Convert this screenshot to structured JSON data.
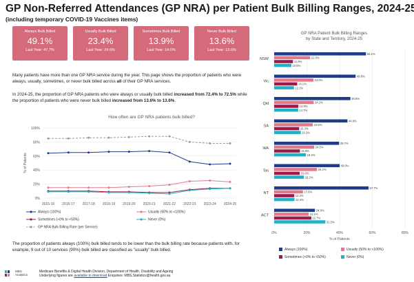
{
  "header": {
    "title": "GP Non-Referred Attendances (GP NRA) per Patient Bulk Billing Ranges, 2024-25",
    "subtitle": "(including temporary COVID-19 Vaccines items)"
  },
  "kpis": [
    {
      "label": "Always Bulk Billed",
      "value": "49.1%",
      "last_year": "Last Year: 47.7%"
    },
    {
      "label": "Usually Bulk Billed",
      "value": "23.4%",
      "last_year": "Last Year: 24.6%"
    },
    {
      "label": "Sometimes Bulk Billed",
      "value": "13.9%",
      "last_year": "Last Year: 14.0%"
    },
    {
      "label": "Never Bulk Billed",
      "value": "13.6%",
      "last_year": "Last Year: 13.6%"
    }
  ],
  "paragraphs": {
    "p1_a": "Many patients have more than one GP NRA service during the year. This page shows the proportion of patients who were always, usually, sometimes, or never bulk billed across ",
    "p1_b": "all",
    "p1_c": " of their GP NRA services.",
    "p2_a": "In 2024-25, the proportion of GP NRA patients who were always or usually bulk billed ",
    "p2_b": "increased from 72.4% to 72.5%",
    "p2_c": " while the proportion of patients who were never bulk billed ",
    "p2_d": "increased from 13.6% to 13.6%",
    "p2_e": ".",
    "p3": "The proportion of patients always (100%) bulk billed tends to be lower than the bulk billing rate because patients with, for example, 9 out of 10 services (90%) bulk billed are classified as \"usually\" bulk billed."
  },
  "colors": {
    "kpi_bg": "#d56a7a",
    "always": "#1f3c88",
    "usually": "#e07a8a",
    "sometimes": "#9b1b4b",
    "never": "#1fb2c4",
    "rate": "#999999"
  },
  "chart_data": [
    {
      "type": "line",
      "title": "How often are GP NRA patients bulk billed?",
      "ylabel": "% of Patients",
      "ylim": [
        0,
        100
      ],
      "yticks": [
        "0%",
        "20%",
        "40%",
        "60%",
        "80%",
        "100%"
      ],
      "categories": [
        "2015-16",
        "2016-17",
        "2017-18",
        "2018-19",
        "2019-20",
        "2020-21",
        "2021-22",
        "2022-23",
        "2023-24",
        "2024-25"
      ],
      "series": [
        {
          "name": "Always (100%)",
          "key": "always",
          "values": [
            64,
            65,
            65,
            66,
            66,
            67,
            65,
            52,
            48,
            49
          ]
        },
        {
          "name": "Usually (50% to <100%)",
          "key": "usually",
          "values": [
            15,
            15,
            15,
            15,
            16,
            17,
            19,
            24,
            25,
            23
          ]
        },
        {
          "name": "Sometimes (>0% to <50%)",
          "key": "sometimes",
          "values": [
            10,
            10,
            10,
            9,
            9,
            8,
            8,
            12,
            14,
            14
          ]
        },
        {
          "name": "Never (0%)",
          "key": "never",
          "values": [
            9,
            9,
            9,
            8,
            8,
            7,
            6,
            11,
            13,
            14
          ]
        },
        {
          "name": "GP NRA Bulk Billing Rate (per Service)",
          "key": "rate",
          "dashed": true,
          "values": [
            85,
            85,
            86,
            86,
            87,
            88,
            88,
            80,
            78,
            78
          ]
        }
      ],
      "legend_placement": "bottom"
    },
    {
      "type": "bar",
      "orientation": "horizontal",
      "title": "GP NRA Patient Bulk Billing Ranges",
      "subtitle": "by State and Territory, 2024-25",
      "xlabel": "% of Patients",
      "xlim": [
        0,
        80
      ],
      "xticks": [
        "0%",
        "20%",
        "40%",
        "60%",
        "80%"
      ],
      "categories": [
        "NSW",
        "Vic",
        "Qld",
        "SA",
        "WA",
        "Tas",
        "NT",
        "ACT"
      ],
      "series": [
        {
          "name": "Always (100%)",
          "key": "always",
          "values": [
            56.1,
            49.8,
            46.6,
            44.8,
            39.7,
            40.0,
            57.7,
            24.9
          ],
          "labels": [
            "56.1%",
            "49.8%",
            "46.6%",
            "44.8%",
            "39.7%",
            "40.0%",
            "57.7%",
            "24.9%"
          ]
        },
        {
          "name": "Usually (50% to <100%)",
          "key": "usually",
          "values": [
            22.0,
            24.0,
            24.2,
            23.6,
            24.5,
            26.2,
            17.6,
            21.1
          ],
          "labels": [
            "22.0%",
            "24.0%",
            "24.2%",
            "23.6%",
            "24.5%",
            "26.2%",
            "17.6%",
            "21.1%"
          ]
        },
        {
          "name": "Sometimes (>0% to <50%)",
          "key": "sometimes",
          "values": [
            11.5,
            14.1,
            14.8,
            15.3,
            15.8,
            15.6,
            12.3,
            22.7
          ],
          "labels": [
            "11.5%",
            "14.1%",
            "14.8%",
            "15.3%",
            "15.8%",
            "15.6%",
            "12.3%",
            "22.7%"
          ]
        },
        {
          "name": "Never (0%)",
          "key": "never",
          "values": [
            10.5,
            12.1,
            14.7,
            16.3,
            19.4,
            18.2,
            12.4,
            31.3
          ],
          "labels": [
            "10.5%",
            "12.1%",
            "14.7%",
            "16.3%",
            "19.4%",
            "18.2%",
            "12.4%",
            "31.3%"
          ]
        }
      ],
      "legend_placement": "bottom"
    }
  ],
  "footer": {
    "org_line1": "MBS",
    "org_line2": "Analytics",
    "line1": "Medicare Benefits & Digital Health Division, Department of Health, Disability and Ageing",
    "line2_a": "Underlying figures are ",
    "line2_link": "available to download",
    "line2_b": "   Enquiries: MBS.Statistics@health.gov.au"
  }
}
